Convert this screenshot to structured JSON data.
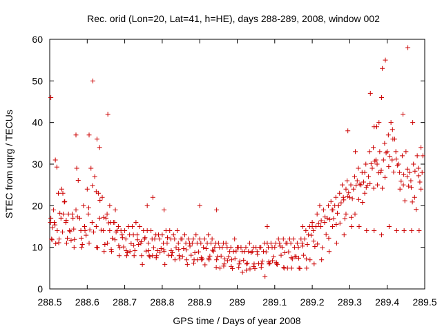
{
  "chart_data": {
    "type": "scatter",
    "title": "Rec. orid (Lon=20, Lat=41, h=HE), days 288-289, 2008, window 002",
    "xlabel": "GPS time / Days of year 2008",
    "ylabel": "STEC from uqrg / TECUs",
    "xlim": [
      288.5,
      289.5
    ],
    "ylim": [
      0,
      60
    ],
    "xticks": [
      288.5,
      288.6,
      288.7,
      288.8,
      288.9,
      289.0,
      289.1,
      289.2,
      289.3,
      289.4,
      289.5
    ],
    "xtick_labels": [
      "288.5",
      "288.6",
      "288.7",
      "288.8",
      "288.9",
      "289",
      "289.1",
      "289.2",
      "289.3",
      "289.4",
      "289.5"
    ],
    "yticks": [
      0,
      10,
      20,
      30,
      40,
      50,
      60
    ],
    "ytick_labels": [
      "0",
      "10",
      "20",
      "30",
      "40",
      "50",
      "60"
    ],
    "grid": false,
    "marker": "plus",
    "color": "#cc0000",
    "series": [
      {
        "x": [
          288.502,
          288.503,
          288.51,
          288.512,
          288.515,
          288.52,
          288.523,
          288.53,
          288.532,
          288.535,
          288.54,
          288.543,
          288.55,
          288.553,
          288.56,
          288.562,
          288.57,
          288.572,
          288.58,
          288.583,
          288.59,
          288.593,
          288.6,
          288.603,
          288.61,
          288.613,
          288.62,
          288.624,
          288.63,
          288.633,
          288.64,
          288.643,
          288.65,
          288.653,
          288.66,
          288.663,
          288.67,
          288.673,
          288.68,
          288.683,
          288.69,
          288.693,
          288.7,
          288.703,
          288.71,
          288.713,
          288.72,
          288.723,
          288.73,
          288.733,
          288.74,
          288.743,
          288.75,
          288.753,
          288.76,
          288.763,
          288.77,
          288.773,
          288.78,
          288.783,
          288.79,
          288.793,
          288.8,
          288.803,
          288.81,
          288.813,
          288.82,
          288.823,
          288.83,
          288.833,
          288.84,
          288.843,
          288.85,
          288.853,
          288.86,
          288.863,
          288.87,
          288.873,
          288.88,
          288.883,
          288.89,
          288.893,
          288.9,
          288.903,
          288.91,
          288.913,
          288.92,
          288.923,
          288.93,
          288.933,
          288.94,
          288.943,
          288.95,
          288.953,
          288.96,
          288.963,
          288.97,
          288.973,
          288.98,
          288.983,
          288.99,
          288.993,
          289.0,
          289.003,
          289.01,
          289.013,
          289.02,
          289.023,
          289.03,
          289.033,
          289.04,
          289.043,
          289.05,
          289.053,
          289.06,
          289.063,
          289.07,
          289.073,
          289.08,
          289.083,
          289.09,
          289.093,
          289.1,
          289.103,
          289.11,
          289.113,
          289.12,
          289.123,
          289.13,
          289.133,
          289.14,
          289.143,
          289.15,
          289.153,
          289.16,
          289.163,
          289.17,
          289.173,
          289.18,
          289.183,
          289.19,
          289.193,
          289.2,
          289.203,
          289.21,
          289.213,
          289.22,
          289.223,
          289.23,
          289.233,
          289.24,
          289.243,
          289.25,
          289.253,
          289.26,
          289.263,
          289.27,
          289.273,
          289.28,
          289.283,
          289.29,
          289.293,
          289.3,
          289.303,
          289.31,
          289.313,
          289.32,
          289.323,
          289.33,
          289.333,
          289.34,
          289.343,
          289.35,
          289.353,
          289.36,
          289.363,
          289.37,
          289.373,
          289.38,
          289.383,
          289.39,
          289.393,
          289.4,
          289.403,
          289.41,
          289.413,
          289.42,
          289.423,
          289.43,
          289.433,
          289.44,
          289.443,
          289.45,
          289.453,
          289.46,
          289.463,
          289.47,
          289.473,
          289.48,
          289.483,
          289.49,
          289.493,
          288.505,
          288.525,
          288.545,
          288.565,
          288.585,
          288.605,
          288.625,
          288.645,
          288.665,
          288.685,
          288.705,
          288.725,
          288.745,
          288.765,
          288.785,
          288.805,
          288.825,
          288.845,
          288.865,
          288.885,
          288.905,
          288.925,
          288.945,
          288.965,
          288.985,
          289.005,
          289.025,
          289.045,
          289.065,
          289.085,
          289.105,
          289.125,
          289.145,
          289.165,
          289.185,
          289.205,
          289.225,
          289.245,
          289.265,
          289.285,
          289.305,
          289.325,
          289.345,
          289.365,
          289.385,
          289.405,
          289.425,
          289.445,
          289.465,
          289.485,
          288.503,
          288.57,
          288.605,
          288.615,
          288.626,
          288.633,
          288.655,
          288.66,
          288.675,
          288.76,
          288.775,
          288.805,
          288.9,
          288.945,
          289.08,
          289.175,
          289.2,
          289.255,
          289.27,
          289.29,
          289.295,
          289.315,
          289.34,
          289.355,
          289.365,
          289.372,
          289.378,
          289.385,
          289.387,
          289.395,
          289.415,
          289.442,
          289.455,
          289.468,
          289.49,
          289.495
        ],
        "y": [
          16,
          17,
          19,
          16,
          31,
          14,
          23,
          17,
          24,
          23,
          21,
          16,
          18,
          14,
          18,
          17,
          19,
          29,
          17,
          14,
          20,
          15,
          24,
          18,
          29,
          16,
          27,
          15,
          23,
          17,
          22,
          14,
          17,
          18,
          14,
          16,
          16,
          16,
          14,
          15,
          14,
          13,
          14,
          12,
          15,
          13,
          15,
          13,
          16,
          13,
          15,
          11,
          14,
          12,
          14,
          11,
          14,
          12,
          12,
          13,
          13,
          12,
          13,
          11,
          14,
          11,
          14,
          12,
          13,
          12,
          14,
          11,
          12,
          12,
          13,
          11,
          12,
          11,
          11,
          12,
          13,
          11,
          12,
          11,
          10,
          12,
          11,
          13,
          11,
          12,
          10,
          11,
          11,
          10,
          10,
          11,
          11,
          10,
          9,
          10,
          9,
          12,
          10,
          10,
          10,
          9,
          9,
          10,
          9,
          11,
          9,
          10,
          10,
          9,
          10,
          10,
          9,
          11,
          11,
          10,
          11,
          10,
          10,
          11,
          12,
          11,
          10,
          12,
          11,
          11,
          12,
          11,
          12,
          10,
          11,
          10,
          12,
          11,
          12,
          14,
          13,
          15,
          16,
          14,
          15,
          18,
          20,
          15,
          19,
          16,
          17,
          20,
          21,
          19,
          20,
          22,
          20,
          23,
          25,
          22,
          24,
          26,
          22,
          25,
          24,
          27,
          26,
          29,
          25,
          28,
          28,
          30,
          27,
          33,
          29,
          34,
          31,
          30,
          33,
          28,
          31,
          35,
          33,
          37,
          40,
          31,
          36,
          33,
          30,
          28,
          32,
          25,
          33,
          27,
          28,
          26,
          30,
          22,
          32,
          29,
          24,
          28,
          12,
          12,
          11,
          10,
          10,
          11,
          10,
          9,
          9,
          8,
          8,
          8,
          8,
          8,
          8,
          9,
          8,
          8,
          7,
          7,
          7,
          7,
          7,
          6,
          7,
          6,
          6,
          6,
          6,
          6,
          6,
          5,
          5,
          5,
          5,
          6,
          7,
          9,
          11,
          13,
          15,
          15,
          14,
          14,
          13,
          15,
          14,
          14,
          14,
          14,
          46,
          37,
          37,
          50,
          36,
          34,
          42,
          20,
          19,
          20,
          22,
          19,
          20,
          19,
          15,
          15,
          15,
          19,
          20,
          18,
          38,
          33,
          23,
          47,
          39,
          39,
          40,
          46,
          53,
          55,
          36,
          42,
          58,
          40,
          34,
          32
        ],
        "offsets": [
          [
            0,
            -4.2
          ],
          [
            0,
            -2.3
          ],
          [
            0,
            -3.6
          ],
          [
            0,
            -5.1
          ],
          [
            0,
            -1.7
          ],
          [
            0,
            -2.9
          ],
          [
            0,
            -4.8
          ],
          [
            0,
            -3.3
          ],
          [
            0,
            -6.0
          ],
          [
            0,
            -2.1
          ],
          [
            0,
            -4.5
          ],
          [
            0,
            -3.8
          ]
        ]
      }
    ]
  }
}
